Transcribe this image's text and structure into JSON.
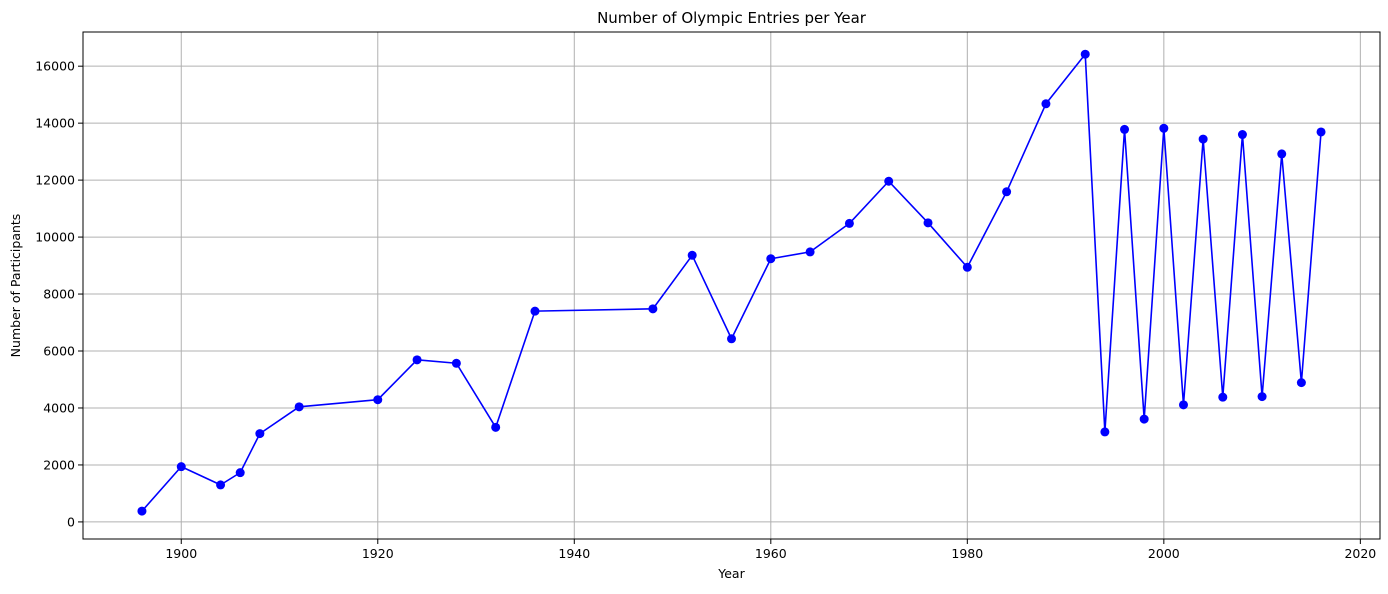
{
  "chart_data": {
    "type": "line",
    "title": "Number of Olympic Entries per Year",
    "xlabel": "Year",
    "ylabel": "Number of Participants",
    "xlim": [
      1890,
      2022
    ],
    "ylim": [
      -600,
      17200
    ],
    "xticks": [
      1900,
      1920,
      1940,
      1960,
      1980,
      2000,
      2020
    ],
    "yticks": [
      0,
      2000,
      4000,
      6000,
      8000,
      10000,
      12000,
      14000,
      16000
    ],
    "grid": true,
    "colors": {
      "line": "#0000ff",
      "marker": "#0000ff",
      "grid": "#b0b0b0"
    },
    "series": [
      {
        "marker": "circle",
        "x": [
          1896,
          1900,
          1904,
          1906,
          1908,
          1912,
          1920,
          1924,
          1928,
          1932,
          1936,
          1948,
          1952,
          1956,
          1960,
          1964,
          1968,
          1972,
          1976,
          1980,
          1984,
          1988,
          1992,
          1994,
          1996,
          1998,
          2000,
          2002,
          2004,
          2006,
          2008,
          2010,
          2012,
          2014,
          2016
        ],
        "y": [
          380,
          1940,
          1300,
          1730,
          3100,
          4040,
          4290,
          5690,
          5570,
          3320,
          7400,
          7480,
          9360,
          6430,
          9240,
          9480,
          10480,
          11960,
          10500,
          8940,
          11590,
          14680,
          16420,
          3160,
          13780,
          3610,
          13820,
          4110,
          13440,
          4380,
          13600,
          4400,
          12920,
          4890,
          13690
        ]
      }
    ]
  }
}
